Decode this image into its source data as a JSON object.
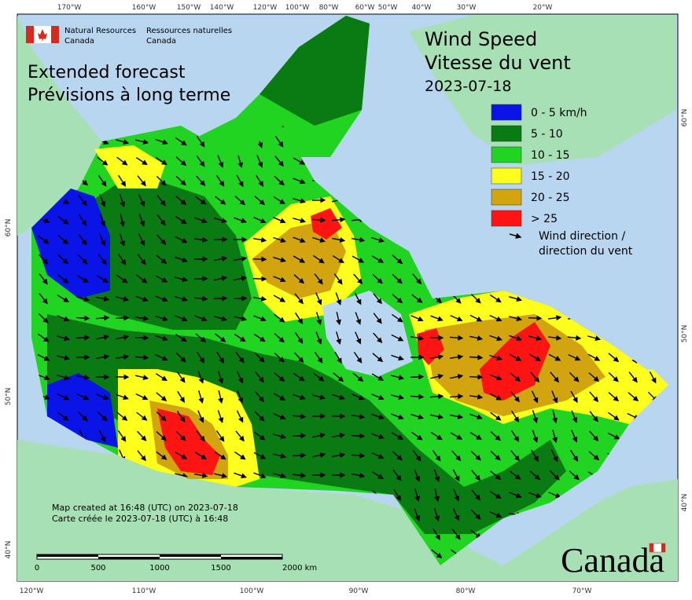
{
  "header": {
    "agency_en": "Natural Resources",
    "agency_en2": "Canada",
    "agency_fr": "Ressources naturelles",
    "agency_fr2": "Canada"
  },
  "subtitle": [
    "Extended forecast",
    "Prévisions à long terme"
  ],
  "title": [
    "Wind Speed",
    "Vitesse du vent",
    "2023-07-18"
  ],
  "legend": {
    "items": [
      {
        "label": "0 - 5 km/h",
        "color": "#0a14e6"
      },
      {
        "label": "5 - 10",
        "color": "#0a7a12"
      },
      {
        "label": "10 - 15",
        "color": "#22d422"
      },
      {
        "label": "15 - 20",
        "color": "#ffff1e"
      },
      {
        "label": "20 - 25",
        "color": "#d2a410"
      },
      {
        "label": "> 25",
        "color": "#ff1414"
      }
    ],
    "arrow_label": [
      "Wind direction /",
      "direction du vent"
    ]
  },
  "top_longitudes": [
    "170°W",
    "160°W",
    "150°W",
    "140°W",
    "120°W",
    "100°W",
    "80°W",
    "60°W",
    "50°W",
    "40°W",
    "30°W",
    "20°W"
  ],
  "bottom_longitudes": [
    "120°W",
    "110°W",
    "100°W",
    "90°W",
    "80°W",
    "70°W"
  ],
  "left_latitudes": [
    "60°N",
    "50°N",
    "40°N"
  ],
  "right_latitudes": [
    "60°N",
    "50°N",
    "40°N"
  ],
  "footer": [
    "Map created at 16:48 (UTC) on 2023-07-18",
    "Carte créée le 2023-07-18 (UTC) à 16:48"
  ],
  "scale": [
    "0",
    "500",
    "1000",
    "1500",
    "2000 km"
  ],
  "wordmark": "Canada"
}
